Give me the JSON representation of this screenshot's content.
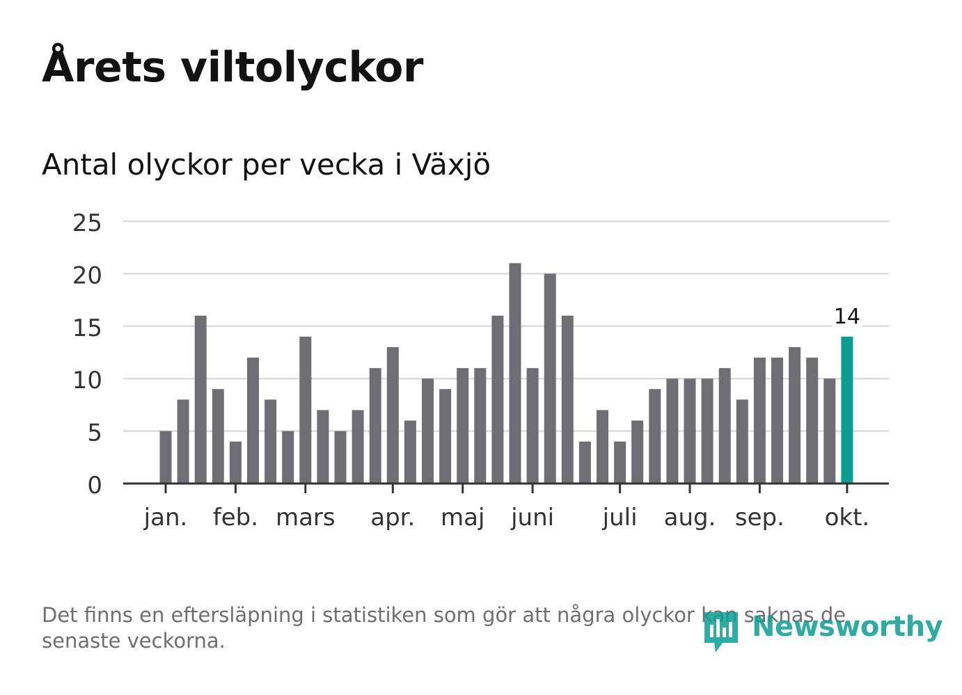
{
  "title": "Årets viltolyckor",
  "subtitle": "Antal olyckor per vecka i Växjö",
  "footnote": "Det finns en eftersläpning i statistiken som gör att några olyckor kan saknas de senaste veckorna.",
  "logo": {
    "text": "Newsworthy",
    "icon": "bar-chart-bubble-icon"
  },
  "colors": {
    "bar": "#6e6e73",
    "highlight": "#0a9e93",
    "grid": "#dcdcdc",
    "axis": "#333333",
    "text": "#121212"
  },
  "chart_data": {
    "type": "bar",
    "title": "Antal olyckor per vecka i Växjö",
    "xlabel": "",
    "ylabel": "",
    "ylim": [
      0,
      25
    ],
    "yticks": [
      0,
      5,
      10,
      15,
      20,
      25
    ],
    "grid": true,
    "values": [
      5,
      8,
      16,
      9,
      4,
      12,
      8,
      5,
      14,
      7,
      5,
      7,
      11,
      13,
      6,
      10,
      9,
      11,
      11,
      16,
      21,
      11,
      20,
      16,
      4,
      7,
      4,
      6,
      9,
      10,
      10,
      10,
      11,
      8,
      12,
      12,
      13,
      12,
      10,
      14
    ],
    "highlight_index": 39,
    "highlight_label": "14",
    "month_labels": [
      {
        "label": "jan.",
        "week_index": 0
      },
      {
        "label": "feb.",
        "week_index": 4
      },
      {
        "label": "mars",
        "week_index": 8
      },
      {
        "label": "apr.",
        "week_index": 13
      },
      {
        "label": "maj",
        "week_index": 17
      },
      {
        "label": "juni",
        "week_index": 21
      },
      {
        "label": "juli",
        "week_index": 26
      },
      {
        "label": "aug.",
        "week_index": 30
      },
      {
        "label": "sep.",
        "week_index": 34
      },
      {
        "label": "okt.",
        "week_index": 39
      }
    ]
  }
}
